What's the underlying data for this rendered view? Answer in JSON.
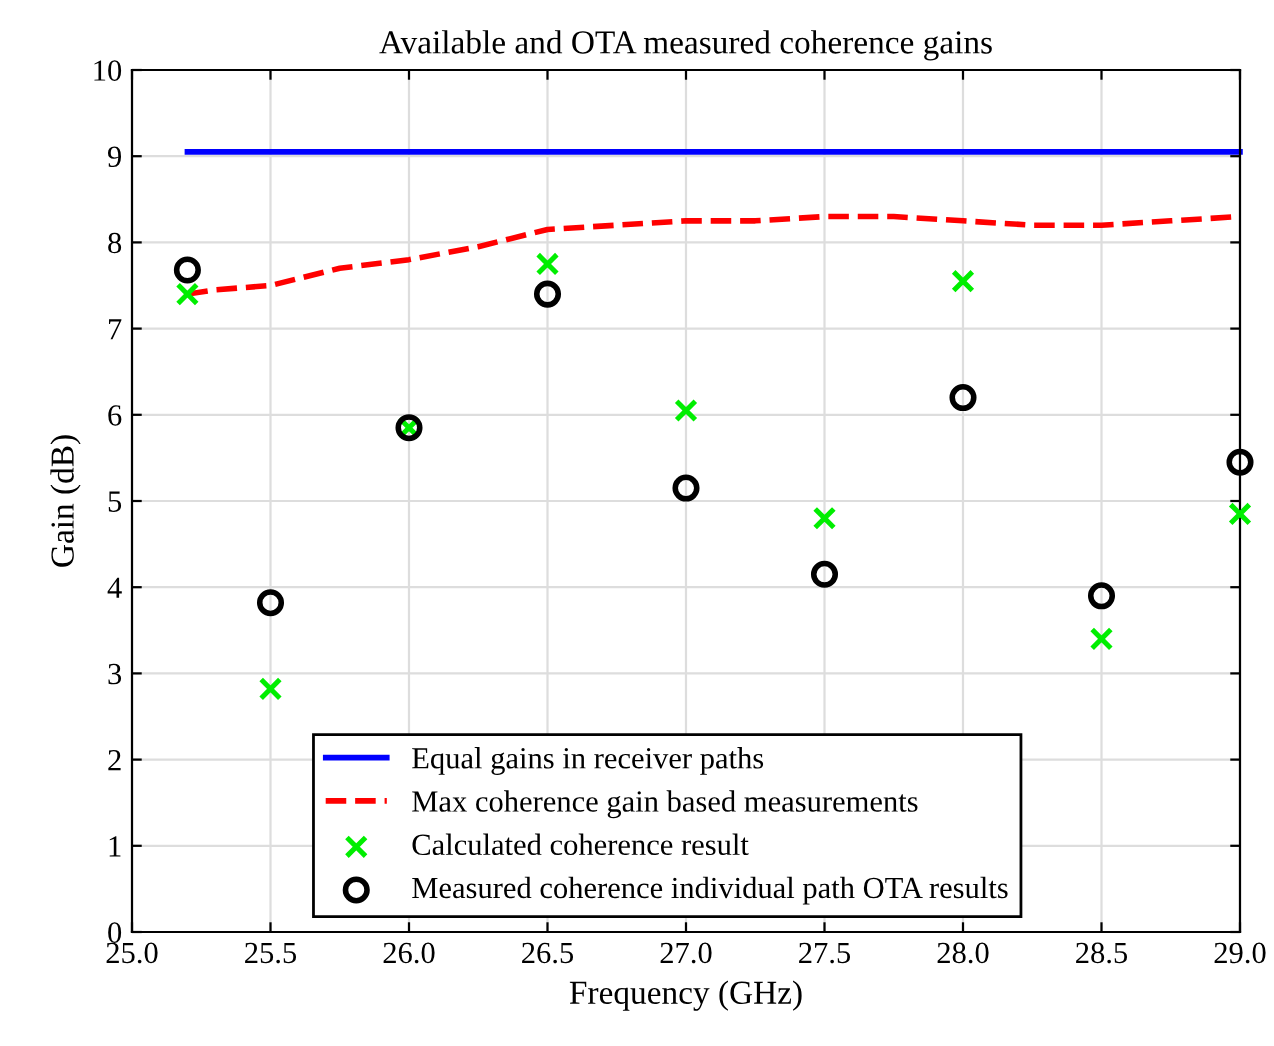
{
  "chart_data": {
    "type": "line",
    "title": "Available and OTA measured coherence gains",
    "xlabel": "Frequency (GHz)",
    "ylabel": "Gain (dB)",
    "xlim": [
      25,
      29
    ],
    "xticks": [
      {
        "value": 25,
        "label": "25.0"
      },
      {
        "value": 25.5,
        "label": "25.5"
      },
      {
        "value": 26,
        "label": "26.0"
      },
      {
        "value": 26.5,
        "label": "26.5"
      },
      {
        "value": 27,
        "label": "27.0"
      },
      {
        "value": 27.5,
        "label": "27.5"
      },
      {
        "value": 28,
        "label": "28.0"
      },
      {
        "value": 28.5,
        "label": "28.5"
      },
      {
        "value": 29,
        "label": "29.0"
      }
    ],
    "ylim": [
      0,
      10
    ],
    "yticks": [
      0,
      1,
      2,
      3,
      4,
      5,
      6,
      7,
      8,
      9,
      10
    ],
    "grid": true,
    "legend": "bottom left",
    "series": [
      {
        "name": "Equal gains in receiver paths",
        "line_style": "solid",
        "marker": "none",
        "color": "#0000ff",
        "x": [
          25.2,
          29.0
        ],
        "values": [
          9.05,
          9.05
        ]
      },
      {
        "name": "Max coherence gain based measurements",
        "line_style": "dashed",
        "marker": "none",
        "color": "#ff0000",
        "x": [
          25.2,
          25.3,
          25.5,
          25.75,
          26.0,
          26.25,
          26.5,
          26.75,
          27.0,
          27.25,
          27.5,
          27.75,
          28.0,
          28.25,
          28.5,
          28.75,
          29.0
        ],
        "values": [
          7.4,
          7.45,
          7.5,
          7.7,
          7.8,
          7.95,
          8.15,
          8.2,
          8.25,
          8.25,
          8.3,
          8.3,
          8.25,
          8.2,
          8.2,
          8.25,
          8.3
        ]
      },
      {
        "name": "Calculated coherence result",
        "type": "scatter",
        "marker": "cross",
        "color": "#00ee00",
        "x": [
          25.2,
          25.5,
          26.0,
          26.5,
          27.0,
          27.5,
          28.0,
          28.5,
          29.0
        ],
        "values": [
          7.4,
          2.82,
          5.85,
          7.75,
          6.05,
          4.8,
          7.55,
          3.4,
          4.85
        ]
      },
      {
        "name": "Measured coherence individual path OTA results",
        "type": "scatter",
        "marker": "circle",
        "color": "#000000",
        "x": [
          25.2,
          25.5,
          26.0,
          26.5,
          27.0,
          27.5,
          28.0,
          28.5,
          29.0
        ],
        "values": [
          7.68,
          3.82,
          5.85,
          7.4,
          5.15,
          4.15,
          6.2,
          3.9,
          5.45
        ]
      }
    ]
  }
}
